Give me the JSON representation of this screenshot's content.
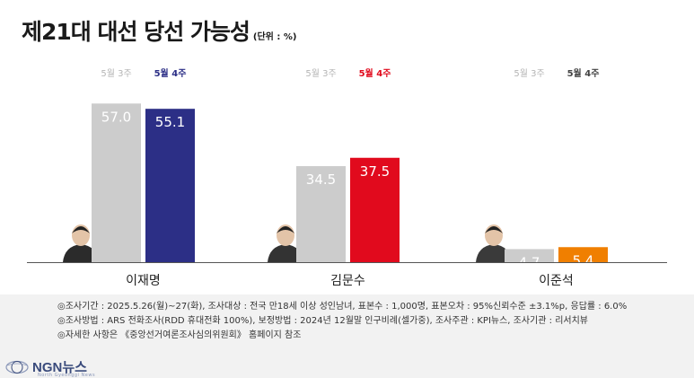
{
  "title": "제21대 대선 당선 가능성",
  "unit": "(단위 : %)",
  "chart_data": {
    "type": "bar",
    "title": "제21대 대선 당선 가능성",
    "unit": "(단위 : %)",
    "categories": [
      "이재명",
      "김문수",
      "이준석"
    ],
    "series": [
      {
        "name": "5월 3주",
        "values": [
          57.0,
          34.5,
          4.7
        ],
        "colors": [
          "#cccccc",
          "#cccccc",
          "#cccccc"
        ]
      },
      {
        "name": "5월 4주",
        "values": [
          55.1,
          37.5,
          5.4
        ],
        "colors": [
          "#2c2f86",
          "#e10a1d",
          "#f07f00"
        ]
      }
    ],
    "label_colors": {
      "5월 3주": [
        "#b5b5b5",
        "#b5b5b5",
        "#b5b5b5"
      ],
      "5월 4주": [
        "#2c2f86",
        "#e10a1d",
        "#444444"
      ]
    },
    "value_text_colors": {
      "5월 3주": "#ffffff",
      "5월 4주": "#ffffff"
    },
    "grid": false,
    "ylim": [
      0,
      60
    ]
  },
  "notes": [
    "◎조사기간 : 2025.5.26(월)~27(화), 조사대상 : 전국 만18세 이상 성인남녀, 표본수 : 1,000명, 표본오차 : 95%신뢰수준 ±3.1%p, 응답률 : 6.0%",
    "◎조사방법 : ARS 전화조사(RDD 휴대전화 100%), 보정방법 : 2024년 12월말 인구비례(셀가중), 조사주관 : KPI뉴스, 조사기관 : 리서치뷰",
    "◎자세한 사항은 《중앙선거여론조사심의위원회》 홈페이지 참조"
  ],
  "footer": {
    "logo_text": "NGN뉴스",
    "logo_sub": "North Gyeonggi News"
  }
}
